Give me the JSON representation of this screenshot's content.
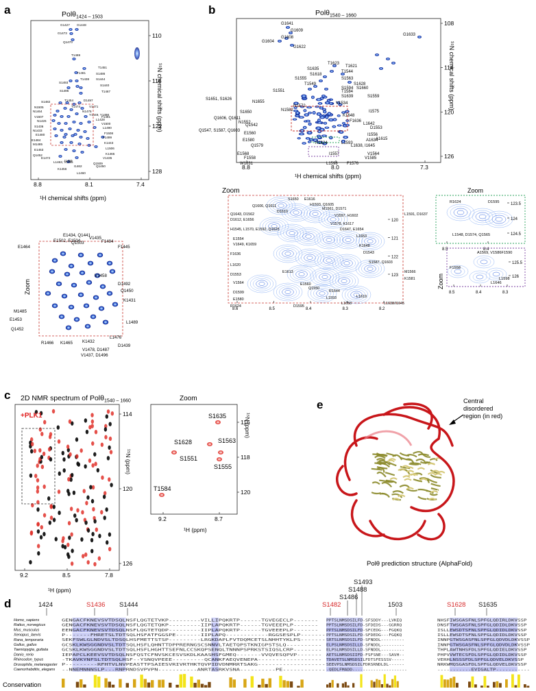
{
  "panels": {
    "a": {
      "letter": "a",
      "title": "Polθ",
      "title_sub": "1424 – 1503",
      "x_label": "¹H chemical shifts (ppm)",
      "y_label": "¹⁵N chemical shifts (ppm)",
      "x_ticks": [
        "8.8",
        "8.1",
        "7.4"
      ],
      "y_ticks": [
        "110",
        "116",
        "122",
        "128"
      ],
      "zoom_label": "Zoom",
      "peaks": [
        "G1427",
        "G1448",
        "G1473",
        "Q1470",
        "T1469",
        "T1451",
        "T1481",
        "S1486",
        "T1438",
        "S1444",
        "S1493",
        "S1440",
        "S1495",
        "T1467",
        "S1482",
        "T1454",
        "D1497",
        "N1505",
        "N1464",
        "T1474",
        "V1471",
        "V1507",
        "N1475",
        "Y1449, Y1498",
        "N1426",
        "F1491",
        "S1436",
        "L1428",
        "N1433",
        "V1500",
        "E1480",
        "L1490",
        "E1484",
        "F1508",
        "M1485",
        "F1499",
        "E1453",
        "K1443",
        "Q1452",
        "L1506",
        "E1472",
        "K1465",
        "L1463, V1455",
        "I1459",
        "I1462",
        "Q1509",
        "K1456",
        "L1460",
        "Q1450",
        "V1435"
      ],
      "zoom_peaks": [
        "E1434, Q1441",
        "E1502, E1504",
        "V1435",
        "F1494",
        "E1464",
        "Q1503",
        "F1445",
        "V1458",
        "D1492",
        "Q1450",
        "M1485",
        "E1453",
        "K1431",
        "Q1452",
        "L1489",
        "R1466",
        "K1465",
        "K1432",
        "V1478, D1487",
        "L1476",
        "D1439",
        "V1437, D1496"
      ]
    },
    "b": {
      "letter": "b",
      "title": "Polθ",
      "title_sub": "1540 – 1660",
      "x_label": "¹H chemical shifts (ppm)",
      "y_label": "¹⁵N chemical shifts (ppm)",
      "x_ticks": [
        "8.8",
        "8.0",
        "7.3"
      ],
      "y_ticks": [
        "108",
        "114",
        "120",
        "126"
      ],
      "zoom_label": "Zoom",
      "peaks": [
        "G1641",
        "G1609",
        "G1608",
        "G1604",
        "G1622",
        "G1633",
        "T1623",
        "T1621",
        "S1635",
        "T1544",
        "S1618",
        "S1563",
        "S1555",
        "T1549",
        "S1628",
        "S1594",
        "S1660",
        "T1584",
        "S1551",
        "S1639",
        "S1559",
        "S1651, S1626",
        "N1655",
        "N1572",
        "V1534",
        "I1575",
        "S1650",
        "N1582",
        "Q1606, Q1611",
        "K1648",
        "N1552",
        "F1636",
        "Q1542",
        "L1642",
        "D1553",
        "Q1547, S1587, Q1603",
        "E1560",
        "I1556",
        "E1580",
        "R1624",
        "L1593",
        "L1638, I1645",
        "A1634",
        "Q1579",
        "A1615",
        "E1568",
        "F1558",
        "V1564",
        "I1557",
        "V1585",
        "W1631",
        "L1598",
        "F1576"
      ],
      "zoom1_peaks": [
        "S1650",
        "E1616",
        "Q1606, Q1611",
        "H1593, Q1605",
        "D1610",
        "M1561, D1571",
        "Q1643, D1562",
        "V1597, H1602",
        "L1591, D1637",
        "D1612, E1656",
        "V1578, K1617",
        "D1647, E1654",
        "H1545, L1570, E1592, Q1625",
        "L1653",
        "E1554",
        "K1648",
        "V1649, K1659",
        "D1543",
        "F1636",
        "S1587, Q1603",
        "L1620",
        "E1613",
        "M1566",
        "D1553",
        "K1581",
        "V1564",
        "E1560",
        "Q1550",
        "D1599",
        "R1644",
        "E1580",
        "L1593",
        "L1619",
        "R1624",
        "L1658",
        "L1638/I1645",
        "D1595"
      ],
      "zoom1_x_ticks": [
        "8.6",
        "8.5",
        "8.4",
        "8.3",
        "8.2"
      ],
      "zoom1_y_ticks": [
        "120",
        "121",
        "122",
        "123"
      ],
      "zoom2_peaks": [
        "R1624",
        "D1595",
        "L1548, D1574, Q1565"
      ],
      "zoom2_x_ticks": [
        "8.5",
        "8.4"
      ],
      "zoom2_y_ticks": [
        "123.5",
        "124",
        "124.5"
      ],
      "zoom3_peaks": [
        "A1569, V1586F1590",
        "F1558",
        "L1646",
        "L1598"
      ],
      "zoom3_x_ticks": [
        "8.5",
        "8.4",
        "8.3"
      ],
      "zoom3_y_ticks": [
        "125.5",
        "126"
      ]
    },
    "c": {
      "letter": "c",
      "title": "2D NMR spectrum of Polθ",
      "title_sub": "1540 – 1660",
      "legend": "+PLK1",
      "x_label": "¹H (ppm)",
      "y_label": "¹⁵N (ppm)",
      "x_ticks": [
        "9.2",
        "8.5",
        "7.8"
      ],
      "y_ticks": [
        "114",
        "120",
        "126"
      ],
      "zoom_label": "Zoom",
      "zoom_peaks": [
        "S1635",
        "S1563",
        "S1628",
        "S1551",
        "S1555",
        "T1584"
      ],
      "zoom_x_ticks": [
        "9.2",
        "8.7"
      ],
      "zoom_x_label": "¹H (ppm)",
      "zoom_y_ticks": [
        "116",
        "118",
        "120"
      ],
      "zoom_y_label": "¹⁵N (ppm)"
    },
    "d": {
      "letter": "d",
      "positions": [
        {
          "label": "1424",
          "red": false
        },
        {
          "label": "S1436",
          "red": true
        },
        {
          "label": "S1444",
          "red": false
        },
        {
          "label": "S1482",
          "red": true
        },
        {
          "label": "S1486",
          "red": false
        },
        {
          "label": "S1488",
          "red": false
        },
        {
          "label": "S1493",
          "red": false
        },
        {
          "label": "1503",
          "red": false
        },
        {
          "label": "S1628",
          "red": true
        },
        {
          "label": "S1635",
          "red": false
        }
      ],
      "species": [
        "Homo_sapiens",
        "Rattus_norvegicus",
        "Mus_musculus",
        "Xenopus_laevis",
        "Rana_temporaria",
        "Gallus_gallus",
        "Taeniopygia_guttata",
        "Danio_rerio",
        "Rhincodon_typus",
        "Drosophila_melanogaster",
        "Caenorhabditis_elegans"
      ],
      "block1": [
        "GENGACFKNEVSVTDSQLNSFLQGTETVKP---------VILLIPQKRTP------TGVEGECLP-------",
        "GENGACFKNEVSVTDSQLNSFLQGTETQKP---------IIPLAPQKRTP------TGVEEEPLP-------",
        "EENGACFKNEVSVTDSQLNSFLQGTETQDP---------IIPLAPQKRTP------TGVEEEPLP-------",
        "P-------FHRETSLTDTSQLHSFATFGGSPE-------IIPLAPQ------------RGGSESPLP-------",
        "SEKFSWLGLNDVSLTDSQLHSFMETTSTSP---------LRGKDAPLFVTDQMCETSLNHHTYKLPS-------",
        "GCSKLKWSGGNDVSLTDTSQLHSFLQHNTTDPPRERNGSCSNNVLTAETQPSTKNIGPSTSLQ----------",
        "GCSKLKWSGGNDVSLTDTSQLHSFLHGHTTSEFNLCCSKQPSENQLTNNNPSPRKSTSIQSLCRP--------",
        "IEPAPCLKEEVSVTDSQLNSFQSTCFNVSKCESVSKDLKAASHSFGMEQ-------VVQVESQPVP-------",
        "-TKAVKYNFSLTDTSQLHSF--YSNQVPEEE---------QCANKFAEQVENEPA------------------",
        "P---------RFHTVLNVPEASTTPSAIESVRIVRTHKTQVPIDVDNMRRTSAKG-------------------",
        "--NNEMNNNSLP---RNPRNDSVPVPN-----------ANRTASRKVSNA----------PE------------"
      ],
      "block2": [
        "PPTSLNMSDSILFD-SFSDDY---LVKEQ",
        "PPTSLNMSDSILFD-SFDEDS---GGRRQ",
        "PPTSLNMSDSILFD-SFCEDG---FGQKQ",
        "PPTSLNMSDSILFD-SFDEDG---FGQKQ",
        "SRTSLNMSDSILFD-SFNDDL---------",
        "ELPSLNMSDSILLD-SFNDDL---------",
        "ELPSLNMSDSILLD-SFNDDL---------",
        "AETSLNMSDSIIFD-FSFSNE---SAVH--",
        "TDAVETSLNMSDSILFDTSFESSSV-----",
        "SEEVPSLNMSDSILFDRSRNDLDL------",
        "-QEDLFMADD---------------------"
      ],
      "block3": [
        "NHSFIWSGASFNLSPFGLQDIRLDKVSSP",
        "DNSFTWSGASFNLSPFGLQDIDLDKVSSP",
        "ISLLEWSDTSFNLSPFGLQDIDLDKVSSP",
        "ISLLEWSDTSFNLSPFGLQDIDLDKVSSP",
        "INNPGTWSGASFNLSPFGLQDVDLDKVSSP",
        "INNPGTWSGASFNLSPFGLQDVDLDKVSSP",
        "THPLAWTNHSFDLSPFGLQDIELDKVSSP",
        "PHPVVWTECSFDLSPFGLQDIDLDKVSSP",
        "VERHLNSSSFDLSPFGLQDVELDKVSSP",
        "NRKWMQSGASFDLSPFGLQDVELDKVSSP",
        "-----------EVIGALTP-----------"
      ],
      "conservation_label": "Conservation"
    },
    "e": {
      "letter": "e",
      "annotation": "Central disordered region (in red)",
      "caption": "Polθ prediction structure (AlphaFold)"
    }
  },
  "colors": {
    "red": "#d62728",
    "blue": "#1f3fae",
    "peak_blue": "#2b50d8",
    "dash_red": "#c8342c",
    "dash_green": "#24a05a",
    "dash_purple": "#7a3fa0",
    "cons_dark": "#7b4a12",
    "cons_gold": "#d8a616",
    "cons_yellow": "#f3e41a",
    "align_blue": "#8f96e8"
  }
}
